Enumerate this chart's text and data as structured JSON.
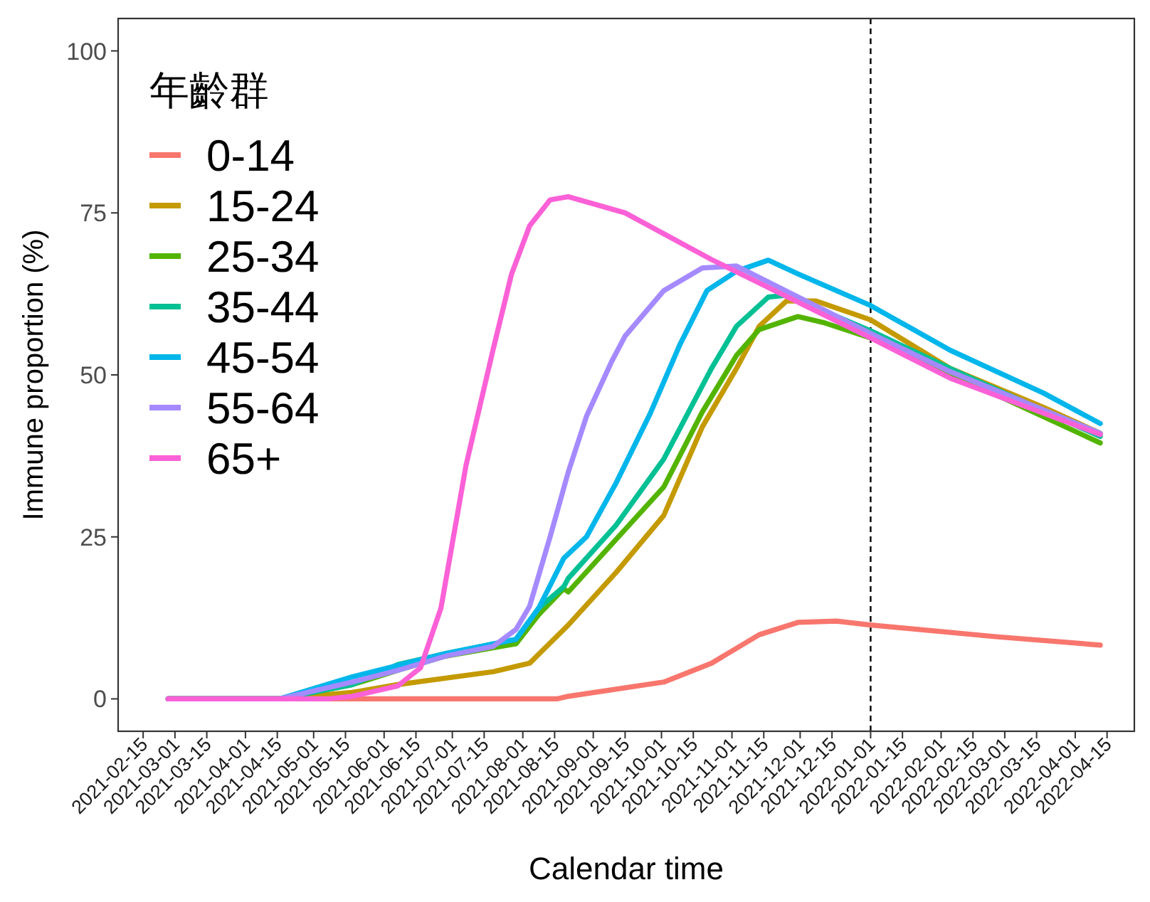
{
  "chart_data": {
    "type": "line",
    "xlabel": "Calendar time",
    "ylabel": "Immune proportion (%)",
    "legend_title": "年齡群",
    "legend": "top left",
    "grid": false,
    "line_style": "solid",
    "marker": "none",
    "xlim": [
      "2021-02-04",
      "2022-04-27"
    ],
    "ylim": [
      -5,
      105
    ],
    "yticks": [
      0,
      25,
      50,
      75,
      100
    ],
    "xticks": [
      "2021-02-15",
      "2021-03-01",
      "2021-03-15",
      "2021-04-01",
      "2021-04-15",
      "2021-05-01",
      "2021-05-15",
      "2021-06-01",
      "2021-06-15",
      "2021-07-01",
      "2021-07-15",
      "2021-08-01",
      "2021-08-15",
      "2021-09-01",
      "2021-09-15",
      "2021-10-01",
      "2021-10-15",
      "2021-11-01",
      "2021-11-15",
      "2021-12-01",
      "2021-12-15",
      "2022-01-01",
      "2022-01-15",
      "2022-02-01",
      "2022-02-15",
      "2022-03-01",
      "2022-03-15",
      "2022-04-01",
      "2022-04-15"
    ],
    "ref_lines": [
      {
        "axis": "x",
        "value": "2022-01-01",
        "color": "#000000",
        "line_style": "dashed"
      }
    ],
    "series": [
      {
        "name": "0-14",
        "color": "#F8766D",
        "x": [
          "2021-02-26",
          "2021-08-16",
          "2021-08-21",
          "2021-10-02",
          "2021-10-23",
          "2021-11-13",
          "2021-11-30",
          "2021-12-17",
          "2022-01-01",
          "2022-02-25",
          "2022-04-12"
        ],
        "values": [
          0,
          0,
          0.4,
          2.6,
          5.5,
          9.9,
          11.8,
          12,
          11.4,
          9.6,
          8.3
        ]
      },
      {
        "name": "15-24",
        "color": "#C49A00",
        "x": [
          "2021-02-26",
          "2021-04-16",
          "2021-05-18",
          "2021-06-07",
          "2021-07-19",
          "2021-08-04",
          "2021-08-19",
          "2021-08-21",
          "2021-09-11",
          "2021-10-02",
          "2021-10-19",
          "2021-11-03",
          "2021-11-13",
          "2021-11-25",
          "2021-12-08",
          "2022-01-01",
          "2022-02-05",
          "2022-03-18",
          "2022-04-12"
        ],
        "values": [
          0,
          0,
          1,
          2.2,
          4.2,
          5.5,
          10.7,
          11.4,
          19.5,
          28.3,
          42,
          51,
          57.5,
          61.4,
          61.4,
          58.5,
          51,
          45,
          41
        ]
      },
      {
        "name": "25-34",
        "color": "#53B400",
        "x": [
          "2021-02-26",
          "2021-04-16",
          "2021-05-18",
          "2021-06-07",
          "2021-06-28",
          "2021-07-29",
          "2021-08-08",
          "2021-08-19",
          "2021-08-21",
          "2021-09-11",
          "2021-10-02",
          "2021-10-19",
          "2021-11-03",
          "2021-11-13",
          "2021-11-30",
          "2021-12-12",
          "2022-01-01",
          "2022-02-05",
          "2022-04-12"
        ],
        "values": [
          0,
          0,
          2.2,
          4.4,
          6.6,
          8.5,
          13,
          17,
          16.5,
          24.6,
          32.7,
          44.3,
          53,
          57,
          59,
          58,
          55.7,
          50.2,
          39.5
        ]
      },
      {
        "name": "35-44",
        "color": "#00C094",
        "x": [
          "2021-02-26",
          "2021-04-16",
          "2021-05-18",
          "2021-06-07",
          "2021-06-28",
          "2021-07-29",
          "2021-08-08",
          "2021-08-19",
          "2021-08-21",
          "2021-09-11",
          "2021-10-02",
          "2021-10-23",
          "2021-11-03",
          "2021-11-17",
          "2021-11-25",
          "2022-01-01",
          "2022-02-05",
          "2022-04-12"
        ],
        "values": [
          0,
          0,
          2.2,
          5.3,
          7,
          9.2,
          14,
          17.3,
          18.6,
          26.8,
          37,
          51,
          57.5,
          62,
          62.3,
          56.8,
          51,
          40.5
        ]
      },
      {
        "name": "45-54",
        "color": "#00B6EB",
        "x": [
          "2021-02-26",
          "2021-04-16",
          "2021-05-18",
          "2021-06-28",
          "2021-07-29",
          "2021-08-08",
          "2021-08-19",
          "2021-08-29",
          "2021-09-11",
          "2021-09-26",
          "2021-10-09",
          "2021-10-21",
          "2021-11-03",
          "2021-11-17",
          "2021-11-30",
          "2022-01-01",
          "2022-02-05",
          "2022-03-18",
          "2022-04-12"
        ],
        "values": [
          0,
          0,
          3.4,
          7,
          9.2,
          14,
          21.7,
          25,
          33.3,
          44,
          54.6,
          63,
          66,
          67.7,
          65.6,
          60.7,
          53.8,
          47.2,
          42.5
        ]
      },
      {
        "name": "55-64",
        "color": "#A58AFF",
        "x": [
          "2021-02-26",
          "2021-04-16",
          "2021-05-18",
          "2021-06-07",
          "2021-06-28",
          "2021-07-19",
          "2021-07-29",
          "2021-08-04",
          "2021-08-13",
          "2021-08-21",
          "2021-08-29",
          "2021-09-09",
          "2021-09-15",
          "2021-10-02",
          "2021-10-19",
          "2021-11-03",
          "2022-01-01",
          "2022-02-05",
          "2022-04-12"
        ],
        "values": [
          0,
          0,
          2.6,
          4.4,
          6.6,
          8.1,
          10.7,
          14.3,
          25,
          35,
          43.6,
          52,
          56,
          63,
          66.5,
          66.8,
          56.4,
          50.5,
          41
        ]
      },
      {
        "name": "65+",
        "color": "#FB61D7",
        "x": [
          "2021-02-26",
          "2021-05-07",
          "2021-05-18",
          "2021-06-07",
          "2021-06-17",
          "2021-06-26",
          "2021-07-07",
          "2021-07-19",
          "2021-07-27",
          "2021-08-04",
          "2021-08-13",
          "2021-08-21",
          "2021-09-15",
          "2021-10-23",
          "2022-01-01",
          "2022-02-05",
          "2022-04-12"
        ],
        "values": [
          0,
          0,
          0.4,
          2,
          4.8,
          14,
          36,
          54,
          65.5,
          73,
          77,
          77.5,
          75,
          67.8,
          55.7,
          49.5,
          40.8
        ]
      }
    ]
  }
}
